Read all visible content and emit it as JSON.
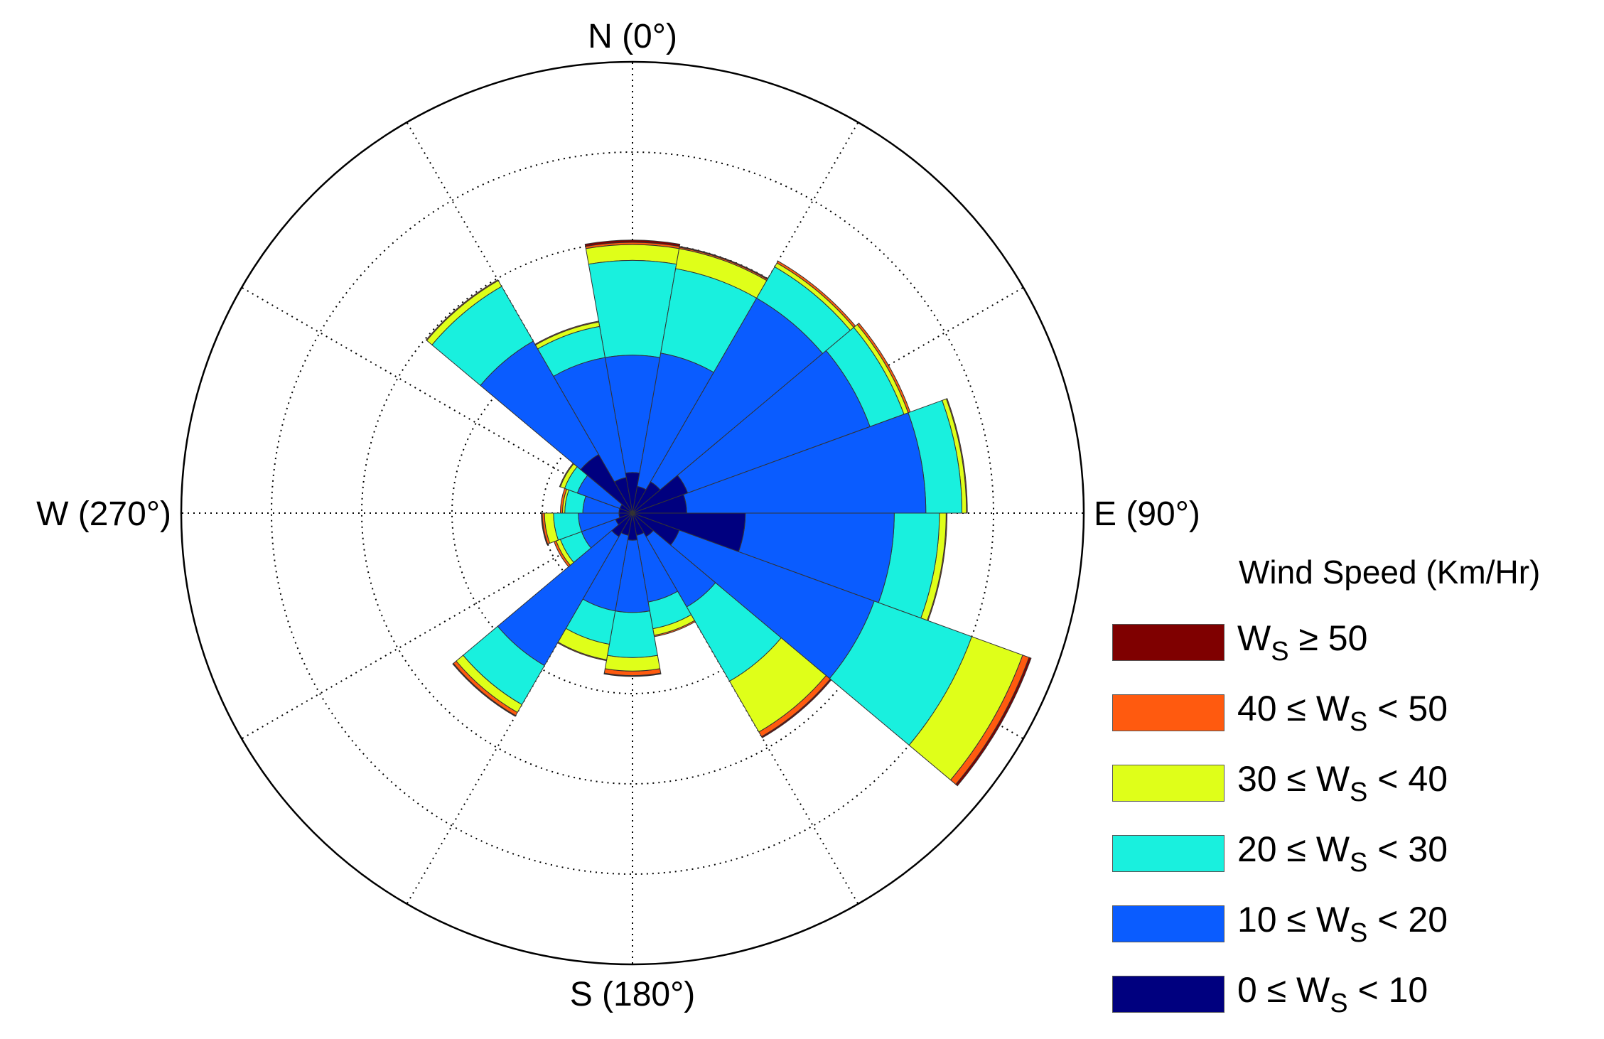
{
  "chart_data": {
    "type": "wind-rose",
    "title": "",
    "direction_labels": [
      {
        "text": "N (0°)",
        "angle": 0
      },
      {
        "text": "E (90°)",
        "angle": 90
      },
      {
        "text": "S (180°)",
        "angle": 180
      },
      {
        "text": "W (270°)",
        "angle": 270
      }
    ],
    "legend_title": "Wind Speed (Km/Hr)",
    "grid": true,
    "radial_max": 10,
    "radial_rings": [
      2,
      4,
      6,
      8
    ],
    "spoke_step_deg": 30,
    "legend_placement": "right",
    "bin_width_deg": 20,
    "speed_bins": [
      {
        "label_pre": "0 ≤ W",
        "label_sub": "S",
        "label_post": " < 10",
        "color": "#00007f"
      },
      {
        "label_pre": "10 ≤ W",
        "label_sub": "S",
        "label_post": " < 20",
        "color": "#0a5cff"
      },
      {
        "label_pre": "20 ≤ W",
        "label_sub": "S",
        "label_post": " < 30",
        "color": "#19f0de"
      },
      {
        "label_pre": "30 ≤ W",
        "label_sub": "S",
        "label_post": " < 40",
        "color": "#dfff19"
      },
      {
        "label_pre": "40 ≤ W",
        "label_sub": "S",
        "label_post": " < 50",
        "color": "#ff5a0f"
      },
      {
        "label_pre": "W",
        "label_sub": "S",
        "label_post": " ≥ 50",
        "color": "#7f0000"
      }
    ],
    "legend_order": [
      5,
      4,
      3,
      2,
      1,
      0
    ],
    "series": [
      {
        "direction": 0,
        "cumulative": [
          0.9,
          3.5,
          5.6,
          5.95,
          6.0,
          6.05
        ]
      },
      {
        "direction": 20,
        "cumulative": [
          0.6,
          3.6,
          5.5,
          5.95,
          5.98,
          6.0
        ]
      },
      {
        "direction": 40,
        "cumulative": [
          0.8,
          5.5,
          6.3,
          6.4,
          6.45,
          6.45
        ]
      },
      {
        "direction": 60,
        "cumulative": [
          1.3,
          5.6,
          6.4,
          6.5,
          6.55,
          6.55
        ]
      },
      {
        "direction": 80,
        "cumulative": [
          1.2,
          6.5,
          7.3,
          7.4,
          7.42,
          7.42
        ]
      },
      {
        "direction": 100,
        "cumulative": [
          2.5,
          5.8,
          6.8,
          6.95,
          6.97,
          6.97
        ]
      },
      {
        "direction": 120,
        "cumulative": [
          1.1,
          5.7,
          8.0,
          9.2,
          9.35,
          9.4
        ]
      },
      {
        "direction": 140,
        "cumulative": [
          0.6,
          2.4,
          4.3,
          5.6,
          5.72,
          5.75
        ]
      },
      {
        "direction": 160,
        "cumulative": [
          0.5,
          2.0,
          2.6,
          2.75,
          2.78,
          2.78
        ]
      },
      {
        "direction": 180,
        "cumulative": [
          0.6,
          2.2,
          3.2,
          3.5,
          3.6,
          3.62
        ]
      },
      {
        "direction": 200,
        "cumulative": [
          0.5,
          2.2,
          2.95,
          3.3,
          3.32,
          3.32
        ]
      },
      {
        "direction": 220,
        "cumulative": [
          0.6,
          3.9,
          4.9,
          5.1,
          5.18,
          5.2
        ]
      },
      {
        "direction": 240,
        "cumulative": [
          0.4,
          1.2,
          1.7,
          1.8,
          1.85,
          1.85
        ]
      },
      {
        "direction": 260,
        "cumulative": [
          0.3,
          1.2,
          1.75,
          1.95,
          2.0,
          2.02
        ]
      },
      {
        "direction": 280,
        "cumulative": [
          0.3,
          1.1,
          1.5,
          1.55,
          1.6,
          1.6
        ]
      },
      {
        "direction": 300,
        "cumulative": [
          0.3,
          1.3,
          1.6,
          1.7,
          1.72,
          1.72
        ]
      },
      {
        "direction": 320,
        "cumulative": [
          1.5,
          4.4,
          5.8,
          5.95,
          5.97,
          5.97
        ]
      },
      {
        "direction": 340,
        "cumulative": [
          0.8,
          3.5,
          4.2,
          4.3,
          4.32,
          4.32
        ]
      }
    ]
  }
}
